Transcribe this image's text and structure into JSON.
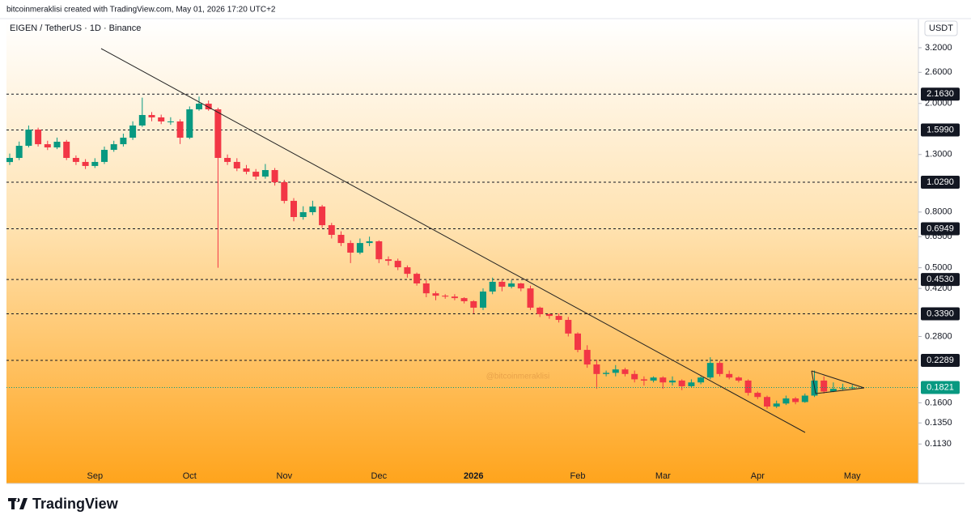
{
  "header": {
    "credit": "bitcoinmeraklisi created with TradingView.com, May 01, 2026 17:20 UTC+2",
    "symbol": "EIGEN / TetherUS · 1D · Binance",
    "currency": "USDT"
  },
  "watermark": "@bitcoinmeraklisi",
  "footer": {
    "brand": "TradingView"
  },
  "chart_data": {
    "type": "candlestick",
    "log_scale": true,
    "up_color": "#089981",
    "down_color": "#f23645",
    "categories": [
      null,
      null,
      null,
      null,
      null,
      null,
      null,
      null,
      null,
      "Sep",
      null,
      null,
      null,
      null,
      null,
      null,
      null,
      null,
      null,
      "Oct",
      null,
      null,
      null,
      null,
      null,
      null,
      null,
      null,
      null,
      "Nov",
      null,
      null,
      null,
      null,
      null,
      null,
      null,
      null,
      null,
      "Dec",
      null,
      null,
      null,
      null,
      null,
      null,
      null,
      null,
      null,
      "2026",
      null,
      null,
      null,
      null,
      null,
      null,
      null,
      null,
      null,
      null,
      "Feb",
      null,
      null,
      null,
      null,
      null,
      null,
      null,
      null,
      "Mar",
      null,
      null,
      null,
      null,
      null,
      null,
      null,
      null,
      null,
      "Apr",
      null,
      null,
      null,
      null,
      null,
      null,
      null,
      null,
      null,
      "May"
    ],
    "open": [
      1.22,
      1.263,
      1.399,
      1.604,
      1.418,
      1.38,
      1.448,
      1.263,
      1.221,
      1.18,
      1.221,
      1.352,
      1.418,
      1.498,
      1.66,
      1.814,
      1.778,
      1.718,
      1.718,
      1.498,
      1.903,
      1.996,
      1.903,
      1.263,
      1.221,
      1.156,
      1.124,
      1.079,
      1.14,
      1.029,
      0.879,
      0.767,
      0.799,
      0.838,
      0.716,
      0.66,
      0.616,
      0.568,
      0.616,
      0.625,
      0.537,
      0.53,
      0.502,
      0.475,
      0.438,
      0.403,
      0.395,
      0.392,
      0.387,
      0.377,
      0.357,
      0.409,
      0.444,
      0.426,
      0.438,
      0.42,
      0.357,
      0.338,
      0.333,
      0.322,
      0.287,
      0.25,
      0.221,
      0.204,
      0.206,
      0.212,
      0.204,
      0.195,
      0.193,
      0.198,
      0.19,
      0.193,
      0.184,
      0.19,
      0.198,
      0.224,
      0.204,
      0.198,
      0.193,
      0.174,
      0.168,
      0.155,
      0.159,
      0.166,
      0.161,
      0.17,
      0.193,
      0.176,
      0.18,
      0.181
    ],
    "high": [
      1.31,
      1.45,
      1.66,
      1.63,
      1.46,
      1.5,
      1.47,
      1.29,
      1.25,
      1.26,
      1.39,
      1.46,
      1.55,
      1.72,
      2.1,
      1.86,
      1.82,
      1.78,
      1.75,
      1.95,
      2.12,
      2.05,
      1.93,
      1.3,
      1.26,
      1.19,
      1.15,
      1.2,
      1.16,
      1.05,
      0.9,
      0.84,
      0.88,
      0.85,
      0.73,
      0.68,
      0.63,
      0.64,
      0.65,
      0.63,
      0.55,
      0.54,
      0.51,
      0.48,
      0.45,
      0.41,
      0.4,
      0.4,
      0.39,
      0.38,
      0.42,
      0.46,
      0.45,
      0.45,
      0.44,
      0.43,
      0.36,
      0.34,
      0.34,
      0.33,
      0.29,
      0.26,
      0.23,
      0.21,
      0.22,
      0.215,
      0.21,
      0.2,
      0.2,
      0.2,
      0.2,
      0.195,
      0.195,
      0.2,
      0.235,
      0.228,
      0.21,
      0.2,
      0.195,
      0.176,
      0.17,
      0.163,
      0.17,
      0.168,
      0.173,
      0.21,
      0.2,
      0.19,
      0.188,
      0.186
    ],
    "low": [
      1.19,
      1.24,
      1.38,
      1.39,
      1.35,
      1.36,
      1.24,
      1.19,
      1.15,
      1.16,
      1.2,
      1.33,
      1.39,
      1.47,
      1.64,
      1.72,
      1.68,
      1.67,
      1.42,
      1.48,
      1.88,
      1.88,
      0.5,
      1.19,
      1.13,
      1.1,
      1.05,
      1.06,
      1.0,
      0.86,
      0.74,
      0.75,
      0.78,
      0.7,
      0.64,
      0.6,
      0.52,
      0.56,
      0.6,
      0.52,
      0.51,
      0.49,
      0.46,
      0.43,
      0.39,
      0.38,
      0.385,
      0.38,
      0.37,
      0.34,
      0.35,
      0.4,
      0.41,
      0.42,
      0.41,
      0.35,
      0.33,
      0.325,
      0.315,
      0.28,
      0.245,
      0.215,
      0.18,
      0.2,
      0.2,
      0.2,
      0.19,
      0.185,
      0.19,
      0.18,
      0.185,
      0.178,
      0.182,
      0.187,
      0.195,
      0.2,
      0.195,
      0.19,
      0.17,
      0.165,
      0.152,
      0.153,
      0.157,
      0.158,
      0.16,
      0.168,
      0.173,
      0.175,
      0.178,
      0.179
    ],
    "close": [
      1.263,
      1.399,
      1.604,
      1.418,
      1.38,
      1.448,
      1.263,
      1.221,
      1.18,
      1.221,
      1.352,
      1.418,
      1.498,
      1.66,
      1.814,
      1.778,
      1.718,
      1.718,
      1.498,
      1.903,
      1.996,
      1.903,
      1.263,
      1.221,
      1.156,
      1.124,
      1.079,
      1.14,
      1.029,
      0.879,
      0.767,
      0.799,
      0.838,
      0.716,
      0.66,
      0.616,
      0.568,
      0.616,
      0.625,
      0.537,
      0.53,
      0.502,
      0.475,
      0.438,
      0.403,
      0.395,
      0.392,
      0.387,
      0.377,
      0.357,
      0.409,
      0.444,
      0.426,
      0.438,
      0.42,
      0.357,
      0.338,
      0.333,
      0.322,
      0.287,
      0.25,
      0.221,
      0.204,
      0.206,
      0.212,
      0.204,
      0.195,
      0.193,
      0.198,
      0.19,
      0.193,
      0.184,
      0.19,
      0.198,
      0.224,
      0.204,
      0.198,
      0.193,
      0.174,
      0.168,
      0.155,
      0.159,
      0.166,
      0.161,
      0.17,
      0.193,
      0.176,
      0.18,
      0.181,
      0.1821
    ],
    "ylim": [
      0.081,
      3.52
    ],
    "yticks": [
      {
        "value": 3.2,
        "label": "3.2000"
      },
      {
        "value": 2.6,
        "label": "2.6000"
      },
      {
        "value": 2.0,
        "label": "2.0000"
      },
      {
        "value": 1.3,
        "label": "1.3000"
      },
      {
        "value": 0.8,
        "label": "0.8000"
      },
      {
        "value": 0.65,
        "label": "0.6500"
      },
      {
        "value": 0.5,
        "label": "0.5000"
      },
      {
        "value": 0.42,
        "label": "0.4200"
      },
      {
        "value": 0.28,
        "label": "0.2800"
      },
      {
        "value": 0.16,
        "label": "0.1600"
      },
      {
        "value": 0.135,
        "label": "0.1350"
      },
      {
        "value": 0.113,
        "label": "0.1130"
      }
    ],
    "levels": [
      {
        "value": 2.163,
        "label": "2.1630"
      },
      {
        "value": 1.599,
        "label": "1.5990"
      },
      {
        "value": 1.029,
        "label": "1.0290"
      },
      {
        "value": 0.6949,
        "label": "0.6949"
      },
      {
        "value": 0.453,
        "label": "0.4530"
      },
      {
        "value": 0.339,
        "label": "0.3390"
      },
      {
        "value": 0.2289,
        "label": "0.2289"
      }
    ],
    "last_price": {
      "value": 0.1821,
      "label": "0.1821"
    }
  }
}
